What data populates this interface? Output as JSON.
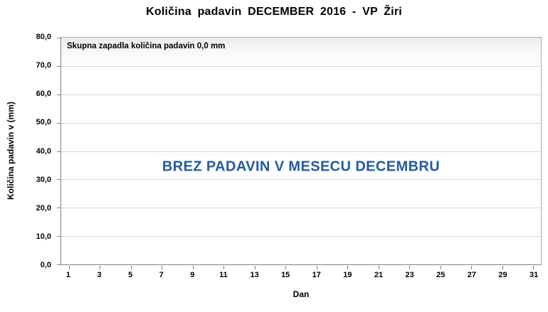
{
  "chart_data": {
    "type": "bar",
    "title": "Količina padavin DECEMBER 2016 - VP Žiri",
    "xlabel": "Dan",
    "ylabel": "Količina padavin v (mm)",
    "annotation": "Skupna zapadla količina padavin 0,0 mm",
    "message": "BREZ PADAVIN V MESECU DECEMBRU",
    "message_color": "#235A9E",
    "x": [
      1,
      2,
      3,
      4,
      5,
      6,
      7,
      8,
      9,
      10,
      11,
      12,
      13,
      14,
      15,
      16,
      17,
      18,
      19,
      20,
      21,
      22,
      23,
      24,
      25,
      26,
      27,
      28,
      29,
      30,
      31
    ],
    "values": [
      0,
      0,
      0,
      0,
      0,
      0,
      0,
      0,
      0,
      0,
      0,
      0,
      0,
      0,
      0,
      0,
      0,
      0,
      0,
      0,
      0,
      0,
      0,
      0,
      0,
      0,
      0,
      0,
      0,
      0,
      0
    ],
    "total_precipitation_mm": "0,0",
    "ylim": [
      0,
      80
    ],
    "ytick_step": 10,
    "ytick_labels": [
      "80,0",
      "70,0",
      "60,0",
      "50,0",
      "40,0",
      "30,0",
      "20,0",
      "10,0",
      "0,0"
    ],
    "xtick_labels": [
      "1",
      "3",
      "5",
      "7",
      "9",
      "11",
      "13",
      "15",
      "17",
      "19",
      "21",
      "23",
      "25",
      "27",
      "29",
      "31"
    ],
    "grid": true,
    "legend": false,
    "gridline_color": "#d9d9d9"
  }
}
